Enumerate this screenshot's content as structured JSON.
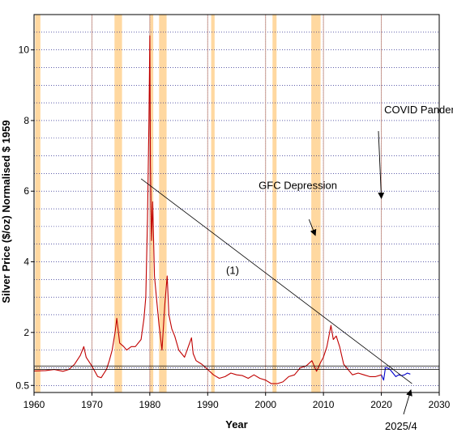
{
  "chart_data": {
    "type": "line",
    "xlabel": "Year",
    "ylabel": "Silver Price ($/oz) Normalised $ 1959",
    "xlim": [
      1960,
      2030
    ],
    "ylim": [
      0.3,
      11
    ],
    "x_ticks": [
      1960,
      1970,
      1980,
      1990,
      2000,
      2010,
      2020,
      2030
    ],
    "y_ticks": [
      0.5,
      2,
      4,
      6,
      8,
      10
    ],
    "y_tick_labels": [
      "0.5",
      "2",
      "4",
      "6",
      "8",
      "10"
    ],
    "y_minor_gridlines": [
      0.5,
      1,
      1.5,
      2,
      2.5,
      3,
      3.5,
      4,
      4.5,
      5,
      5.5,
      6,
      6.5,
      7,
      7.5,
      8,
      8.5,
      9,
      9.5,
      10,
      10.5
    ],
    "grid": true,
    "recession_bands": [
      [
        1960.2,
        1961.1
      ],
      [
        1973.9,
        1975.2
      ],
      [
        1980.0,
        1980.6
      ],
      [
        1981.6,
        1982.9
      ],
      [
        1990.6,
        1991.2
      ],
      [
        2001.2,
        2001.9
      ],
      [
        2007.9,
        2009.5
      ]
    ],
    "event_lines": [
      1970,
      1980,
      1990,
      2000,
      2010,
      2020
    ],
    "series": [
      {
        "color": "#c00000",
        "points": [
          [
            1960,
            0.91
          ],
          [
            1962,
            0.92
          ],
          [
            1963.5,
            0.95
          ],
          [
            1965,
            0.9
          ],
          [
            1966,
            0.95
          ],
          [
            1967,
            1.1
          ],
          [
            1968,
            1.35
          ],
          [
            1968.6,
            1.6
          ],
          [
            1969,
            1.3
          ],
          [
            1970,
            1.05
          ],
          [
            1971,
            0.75
          ],
          [
            1971.6,
            0.72
          ],
          [
            1972.5,
            0.95
          ],
          [
            1973,
            1.2
          ],
          [
            1973.5,
            1.5
          ],
          [
            1974,
            2.0
          ],
          [
            1974.3,
            2.4
          ],
          [
            1974.8,
            1.7
          ],
          [
            1975.5,
            1.6
          ],
          [
            1976,
            1.5
          ],
          [
            1976.8,
            1.6
          ],
          [
            1977.5,
            1.6
          ],
          [
            1978,
            1.7
          ],
          [
            1978.5,
            1.8
          ],
          [
            1979,
            2.4
          ],
          [
            1979.3,
            3.0
          ],
          [
            1979.6,
            5.2
          ],
          [
            1979.85,
            8.0
          ],
          [
            1980.0,
            10.4
          ],
          [
            1980.1,
            6.8
          ],
          [
            1980.3,
            4.6
          ],
          [
            1980.5,
            5.7
          ],
          [
            1980.8,
            3.6
          ],
          [
            1981.2,
            2.9
          ],
          [
            1981.6,
            2.2
          ],
          [
            1982.1,
            1.5
          ],
          [
            1982.6,
            2.8
          ],
          [
            1983.0,
            3.6
          ],
          [
            1983.3,
            2.5
          ],
          [
            1983.8,
            2.1
          ],
          [
            1984.3,
            1.9
          ],
          [
            1985,
            1.5
          ],
          [
            1986,
            1.3
          ],
          [
            1987.2,
            1.85
          ],
          [
            1987.5,
            1.4
          ],
          [
            1988,
            1.2
          ],
          [
            1989,
            1.1
          ],
          [
            1990,
            0.95
          ],
          [
            1991,
            0.8
          ],
          [
            1992,
            0.7
          ],
          [
            1993,
            0.75
          ],
          [
            1994,
            0.85
          ],
          [
            1995,
            0.8
          ],
          [
            1996,
            0.78
          ],
          [
            1997,
            0.7
          ],
          [
            1998,
            0.8
          ],
          [
            1999,
            0.7
          ],
          [
            2000,
            0.65
          ],
          [
            2001,
            0.55
          ],
          [
            2002,
            0.55
          ],
          [
            2003,
            0.6
          ],
          [
            2004,
            0.75
          ],
          [
            2005,
            0.8
          ],
          [
            2006,
            1.0
          ],
          [
            2007,
            1.05
          ],
          [
            2008,
            1.2
          ],
          [
            2008.8,
            0.9
          ],
          [
            2009.5,
            1.15
          ],
          [
            2010,
            1.3
          ],
          [
            2010.6,
            1.6
          ],
          [
            2011.3,
            2.2
          ],
          [
            2011.7,
            1.8
          ],
          [
            2012.2,
            1.9
          ],
          [
            2012.8,
            1.6
          ],
          [
            2013.5,
            1.1
          ],
          [
            2014,
            1.0
          ],
          [
            2015,
            0.8
          ],
          [
            2016,
            0.85
          ],
          [
            2017,
            0.8
          ],
          [
            2018,
            0.75
          ],
          [
            2019,
            0.75
          ],
          [
            2020,
            0.8
          ]
        ]
      },
      {
        "color": "#0000cc",
        "points": [
          [
            2020,
            0.8
          ],
          [
            2020.4,
            0.65
          ],
          [
            2020.7,
            1.0
          ],
          [
            2021,
            1.0
          ],
          [
            2021.5,
            0.95
          ],
          [
            2022,
            0.85
          ],
          [
            2022.5,
            0.75
          ],
          [
            2023,
            0.8
          ],
          [
            2023.5,
            0.78
          ],
          [
            2024,
            0.8
          ],
          [
            2024.5,
            0.85
          ],
          [
            2025.0,
            0.82
          ]
        ]
      }
    ],
    "trendline": {
      "x": [
        1978.5,
        2025.3
      ],
      "y": [
        6.35,
        0.55
      ],
      "label": "(1)",
      "label_at": [
        1981.5,
        4.7
      ]
    },
    "hlines": [
      0.95,
      1.05
    ],
    "annotations": [
      {
        "text": "COVID Pandemic",
        "text_at": [
          2020.5,
          8.3
        ],
        "arrow_from": [
          2019.5,
          7.7
        ],
        "arrow_to": [
          2020.0,
          5.8
        ]
      },
      {
        "text": "GFC Depression",
        "text_at": [
          1998.8,
          6.15
        ],
        "arrow_from": [
          2007.5,
          5.2
        ],
        "arrow_to": [
          2008.6,
          4.75
        ]
      },
      {
        "text": "2025/4",
        "text_at": [
          2024.3,
          -0.9
        ],
        "arrow_from": [
          2025.6,
          -0.35
        ],
        "arrow_to": [
          2025.3,
          0.3
        ]
      }
    ],
    "band_color": "#ffd8a0",
    "grid_color": "#00007a",
    "event_line_color": "#c89a90"
  }
}
